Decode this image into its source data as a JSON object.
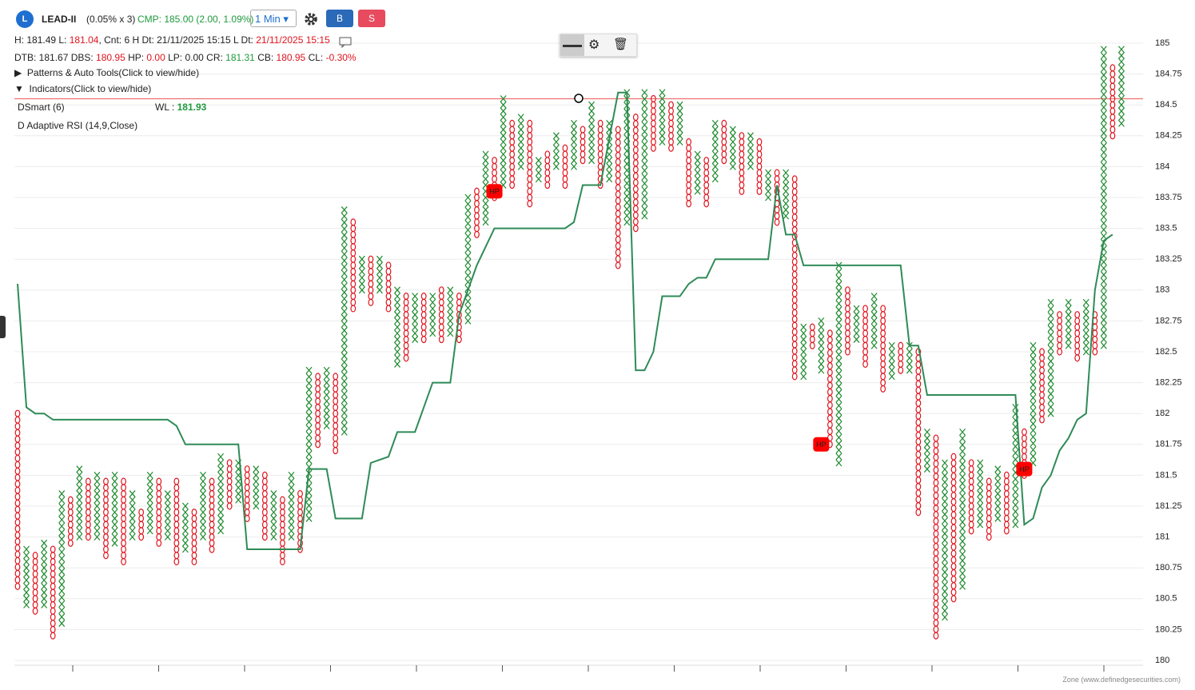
{
  "header": {
    "symbol": "LEAD-II",
    "box": "(0.05% x 3)",
    "cmp": "CMP: 185.00 (2.00, 1.09%)",
    "interval": "1 Min",
    "buy": "B",
    "sell": "S",
    "line1": [
      {
        "text": "H: ",
        "tone": "black"
      },
      {
        "text": "181.49",
        "tone": "black"
      },
      {
        "text": " L: ",
        "tone": "black"
      },
      {
        "text": "181.04",
        "tone": "red"
      },
      {
        "text": ", Cnt: 6 H Dt: 21/11/2025 15:15 L Dt: ",
        "tone": "black"
      },
      {
        "text": "21/11/2025 15:15",
        "tone": "red"
      }
    ],
    "line2": [
      {
        "text": "DTB: 181.67 DBS: ",
        "tone": "black"
      },
      {
        "text": "180.95",
        "tone": "red"
      },
      {
        "text": " HP: ",
        "tone": "black"
      },
      {
        "text": "0.00",
        "tone": "red"
      },
      {
        "text": " LP: 0.00 CR: ",
        "tone": "black"
      },
      {
        "text": "181.31",
        "tone": "green"
      },
      {
        "text": " CB: ",
        "tone": "black"
      },
      {
        "text": "180.95",
        "tone": "red"
      },
      {
        "text": " CL: ",
        "tone": "black"
      },
      {
        "text": "-0.30%",
        "tone": "red"
      }
    ],
    "patterns": "Patterns & Auto Tools(Click to view/hide)",
    "indicators": "Indicators(Click to view/hide)",
    "ind1": "DSmart (6)",
    "wl_label": "WL :",
    "wl_value": "181.93",
    "ind2": "D Adaptive RSI (14,9,Close)"
  },
  "footer": "Zone (www.definedgesecurities.com)",
  "chart_data": {
    "type": "pnf",
    "ylim": [
      180,
      185
    ],
    "yticks": [
      185,
      184.75,
      184.5,
      184.25,
      184,
      183.75,
      183.5,
      183.25,
      183,
      182.75,
      182.5,
      182.25,
      182,
      181.75,
      181.5,
      181.25,
      181,
      180.75,
      180.5,
      180.25,
      180
    ],
    "grid": true,
    "x_color": "#1e8a2e",
    "o_color": "#e0141e",
    "level": 184.55,
    "level_color": "#f07070",
    "columns": [
      {
        "kind": "O",
        "low": 180.6,
        "high": 182.0
      },
      {
        "kind": "X",
        "low": 180.45,
        "high": 180.9
      },
      {
        "kind": "O",
        "low": 180.4,
        "high": 180.85
      },
      {
        "kind": "X",
        "low": 180.45,
        "high": 180.95
      },
      {
        "kind": "O",
        "low": 180.2,
        "high": 180.9
      },
      {
        "kind": "X",
        "low": 180.3,
        "high": 181.35
      },
      {
        "kind": "O",
        "low": 180.95,
        "high": 181.3
      },
      {
        "kind": "X",
        "low": 181.0,
        "high": 181.55
      },
      {
        "kind": "O",
        "low": 181.0,
        "high": 181.45
      },
      {
        "kind": "X",
        "low": 181.0,
        "high": 181.5
      },
      {
        "kind": "O",
        "low": 180.85,
        "high": 181.45
      },
      {
        "kind": "X",
        "low": 180.95,
        "high": 181.5
      },
      {
        "kind": "O",
        "low": 180.8,
        "high": 181.45
      },
      {
        "kind": "X",
        "low": 181.0,
        "high": 181.35
      },
      {
        "kind": "O",
        "low": 181.0,
        "high": 181.2
      },
      {
        "kind": "X",
        "low": 181.05,
        "high": 181.5
      },
      {
        "kind": "O",
        "low": 180.95,
        "high": 181.45
      },
      {
        "kind": "X",
        "low": 181.0,
        "high": 181.35
      },
      {
        "kind": "O",
        "low": 180.8,
        "high": 181.45
      },
      {
        "kind": "X",
        "low": 180.9,
        "high": 181.25
      },
      {
        "kind": "O",
        "low": 180.8,
        "high": 181.2
      },
      {
        "kind": "X",
        "low": 181.0,
        "high": 181.5
      },
      {
        "kind": "O",
        "low": 180.9,
        "high": 181.45
      },
      {
        "kind": "X",
        "low": 181.05,
        "high": 181.65
      },
      {
        "kind": "O",
        "low": 181.25,
        "high": 181.6
      },
      {
        "kind": "X",
        "low": 181.3,
        "high": 181.6
      },
      {
        "kind": "O",
        "low": 181.15,
        "high": 181.55
      },
      {
        "kind": "X",
        "low": 181.25,
        "high": 181.55
      },
      {
        "kind": "O",
        "low": 181.0,
        "high": 181.5
      },
      {
        "kind": "X",
        "low": 181.0,
        "high": 181.35
      },
      {
        "kind": "O",
        "low": 180.8,
        "high": 181.3
      },
      {
        "kind": "X",
        "low": 181.0,
        "high": 181.5
      },
      {
        "kind": "O",
        "low": 180.9,
        "high": 181.35
      },
      {
        "kind": "X",
        "low": 181.15,
        "high": 182.35
      },
      {
        "kind": "O",
        "low": 181.75,
        "high": 182.3
      },
      {
        "kind": "X",
        "low": 181.9,
        "high": 182.35
      },
      {
        "kind": "O",
        "low": 181.7,
        "high": 182.3
      },
      {
        "kind": "X",
        "low": 181.85,
        "high": 183.65
      },
      {
        "kind": "O",
        "low": 182.85,
        "high": 183.55
      },
      {
        "kind": "X",
        "low": 183.0,
        "high": 183.25
      },
      {
        "kind": "O",
        "low": 182.9,
        "high": 183.25
      },
      {
        "kind": "X",
        "low": 183.0,
        "high": 183.25
      },
      {
        "kind": "O",
        "low": 182.85,
        "high": 183.2
      },
      {
        "kind": "X",
        "low": 182.4,
        "high": 183.0
      },
      {
        "kind": "O",
        "low": 182.45,
        "high": 182.95
      },
      {
        "kind": "X",
        "low": 182.6,
        "high": 182.95
      },
      {
        "kind": "O",
        "low": 182.6,
        "high": 182.95
      },
      {
        "kind": "X",
        "low": 182.65,
        "high": 182.95
      },
      {
        "kind": "O",
        "low": 182.6,
        "high": 183.0
      },
      {
        "kind": "X",
        "low": 182.65,
        "high": 183.0
      },
      {
        "kind": "O",
        "low": 182.6,
        "high": 182.95
      },
      {
        "kind": "X",
        "low": 182.75,
        "high": 183.75
      },
      {
        "kind": "O",
        "low": 183.45,
        "high": 183.8
      },
      {
        "kind": "X",
        "low": 183.55,
        "high": 184.1
      },
      {
        "kind": "O",
        "low": 183.75,
        "high": 184.05
      },
      {
        "kind": "X",
        "low": 183.85,
        "high": 184.55
      },
      {
        "kind": "O",
        "low": 183.85,
        "high": 184.35
      },
      {
        "kind": "X",
        "low": 184.0,
        "high": 184.4
      },
      {
        "kind": "O",
        "low": 183.7,
        "high": 184.35
      },
      {
        "kind": "X",
        "low": 183.9,
        "high": 184.05
      },
      {
        "kind": "O",
        "low": 183.85,
        "high": 184.1
      },
      {
        "kind": "X",
        "low": 184.0,
        "high": 184.25
      },
      {
        "kind": "O",
        "low": 183.85,
        "high": 184.15
      },
      {
        "kind": "X",
        "low": 184.0,
        "high": 184.35
      },
      {
        "kind": "O",
        "low": 184.05,
        "high": 184.3
      },
      {
        "kind": "X",
        "low": 184.05,
        "high": 184.5
      },
      {
        "kind": "O",
        "low": 183.85,
        "high": 184.35
      },
      {
        "kind": "X",
        "low": 183.9,
        "high": 184.35
      },
      {
        "kind": "O",
        "low": 183.2,
        "high": 184.3
      },
      {
        "kind": "X",
        "low": 183.55,
        "high": 184.6
      },
      {
        "kind": "O",
        "low": 183.5,
        "high": 184.4
      },
      {
        "kind": "X",
        "low": 183.6,
        "high": 184.6
      },
      {
        "kind": "O",
        "low": 184.15,
        "high": 184.55
      },
      {
        "kind": "X",
        "low": 184.2,
        "high": 184.6
      },
      {
        "kind": "O",
        "low": 184.15,
        "high": 184.5
      },
      {
        "kind": "X",
        "low": 184.2,
        "high": 184.5
      },
      {
        "kind": "O",
        "low": 183.7,
        "high": 184.2
      },
      {
        "kind": "X",
        "low": 183.8,
        "high": 184.1
      },
      {
        "kind": "O",
        "low": 183.7,
        "high": 184.05
      },
      {
        "kind": "X",
        "low": 183.9,
        "high": 184.35
      },
      {
        "kind": "O",
        "low": 184.05,
        "high": 184.35
      },
      {
        "kind": "X",
        "low": 184.0,
        "high": 184.3
      },
      {
        "kind": "O",
        "low": 183.8,
        "high": 184.25
      },
      {
        "kind": "X",
        "low": 184.0,
        "high": 184.25
      },
      {
        "kind": "O",
        "low": 183.8,
        "high": 184.2
      },
      {
        "kind": "X",
        "low": 183.75,
        "high": 183.95
      },
      {
        "kind": "O",
        "low": 183.55,
        "high": 183.95
      },
      {
        "kind": "X",
        "low": 183.6,
        "high": 183.95
      },
      {
        "kind": "O",
        "low": 182.3,
        "high": 183.9
      },
      {
        "kind": "X",
        "low": 182.3,
        "high": 182.7
      },
      {
        "kind": "O",
        "low": 182.55,
        "high": 182.7
      },
      {
        "kind": "X",
        "low": 182.35,
        "high": 182.75
      },
      {
        "kind": "O",
        "low": 181.75,
        "high": 182.65
      },
      {
        "kind": "X",
        "low": 181.6,
        "high": 183.2
      },
      {
        "kind": "O",
        "low": 182.5,
        "high": 183.0
      },
      {
        "kind": "X",
        "low": 182.6,
        "high": 182.85
      },
      {
        "kind": "O",
        "low": 182.4,
        "high": 182.85
      },
      {
        "kind": "X",
        "low": 182.55,
        "high": 182.95
      },
      {
        "kind": "O",
        "low": 182.2,
        "high": 182.85
      },
      {
        "kind": "X",
        "low": 182.3,
        "high": 182.55
      },
      {
        "kind": "O",
        "low": 182.35,
        "high": 182.55
      },
      {
        "kind": "X",
        "low": 182.35,
        "high": 182.55
      },
      {
        "kind": "O",
        "low": 181.2,
        "high": 182.5
      },
      {
        "kind": "X",
        "low": 181.55,
        "high": 181.85
      },
      {
        "kind": "O",
        "low": 180.2,
        "high": 181.8
      },
      {
        "kind": "X",
        "low": 180.35,
        "high": 181.6
      },
      {
        "kind": "O",
        "low": 180.5,
        "high": 181.65
      },
      {
        "kind": "X",
        "low": 180.6,
        "high": 181.85
      },
      {
        "kind": "O",
        "low": 181.05,
        "high": 181.6
      },
      {
        "kind": "X",
        "low": 181.1,
        "high": 181.6
      },
      {
        "kind": "O",
        "low": 181.0,
        "high": 181.45
      },
      {
        "kind": "X",
        "low": 181.15,
        "high": 181.55
      },
      {
        "kind": "O",
        "low": 181.05,
        "high": 181.5
      },
      {
        "kind": "X",
        "low": 181.1,
        "high": 182.05
      },
      {
        "kind": "O",
        "low": 181.5,
        "high": 181.85
      },
      {
        "kind": "X",
        "low": 181.6,
        "high": 182.55
      },
      {
        "kind": "O",
        "low": 181.95,
        "high": 182.5
      },
      {
        "kind": "X",
        "low": 182.0,
        "high": 182.9
      },
      {
        "kind": "O",
        "low": 182.5,
        "high": 182.8
      },
      {
        "kind": "X",
        "low": 182.55,
        "high": 182.9
      },
      {
        "kind": "O",
        "low": 182.45,
        "high": 182.8
      },
      {
        "kind": "X",
        "low": 182.5,
        "high": 182.9
      },
      {
        "kind": "O",
        "low": 182.5,
        "high": 182.8
      },
      {
        "kind": "X",
        "low": 182.55,
        "high": 184.95
      },
      {
        "kind": "O",
        "low": 184.25,
        "high": 184.8
      },
      {
        "kind": "X",
        "low": 184.35,
        "high": 184.95
      }
    ],
    "markers": [
      {
        "label": "HP",
        "column": 54,
        "price": 183.8
      },
      {
        "label": "HP",
        "column": 91,
        "price": 181.75
      },
      {
        "label": "HP",
        "column": 114,
        "price": 181.55
      }
    ],
    "marker_color": "#ff0000",
    "series": [
      {
        "name": "D Adaptive RSI (14,9,Close)",
        "color": "#2e8b57",
        "x": [
          0,
          1,
          2,
          3,
          4,
          17,
          18,
          19,
          25,
          26,
          32,
          33,
          35,
          36,
          39,
          40,
          42,
          43,
          45,
          47,
          49,
          50,
          52,
          54,
          62,
          63,
          64,
          66,
          68,
          69,
          70,
          71,
          72,
          73,
          75,
          76,
          77,
          78,
          79,
          85,
          86,
          87,
          88,
          89,
          100,
          101,
          102,
          103,
          113,
          114,
          115,
          116,
          117,
          118,
          119,
          120,
          121,
          122,
          123,
          124
        ],
        "values": [
          183.05,
          182.05,
          182.0,
          182.0,
          181.95,
          181.95,
          181.9,
          181.75,
          181.75,
          180.9,
          180.9,
          181.55,
          181.55,
          181.15,
          181.15,
          181.6,
          181.65,
          181.85,
          181.85,
          182.25,
          182.25,
          182.8,
          183.2,
          183.5,
          183.5,
          183.55,
          183.85,
          183.85,
          184.6,
          184.6,
          182.35,
          182.35,
          182.5,
          182.95,
          182.95,
          183.05,
          183.1,
          183.1,
          183.25,
          183.25,
          183.85,
          183.45,
          183.45,
          183.2,
          183.2,
          182.55,
          182.55,
          182.15,
          182.15,
          181.1,
          181.15,
          181.4,
          181.5,
          181.7,
          181.8,
          181.95,
          182.0,
          183.0,
          183.4,
          183.45
        ]
      }
    ]
  }
}
